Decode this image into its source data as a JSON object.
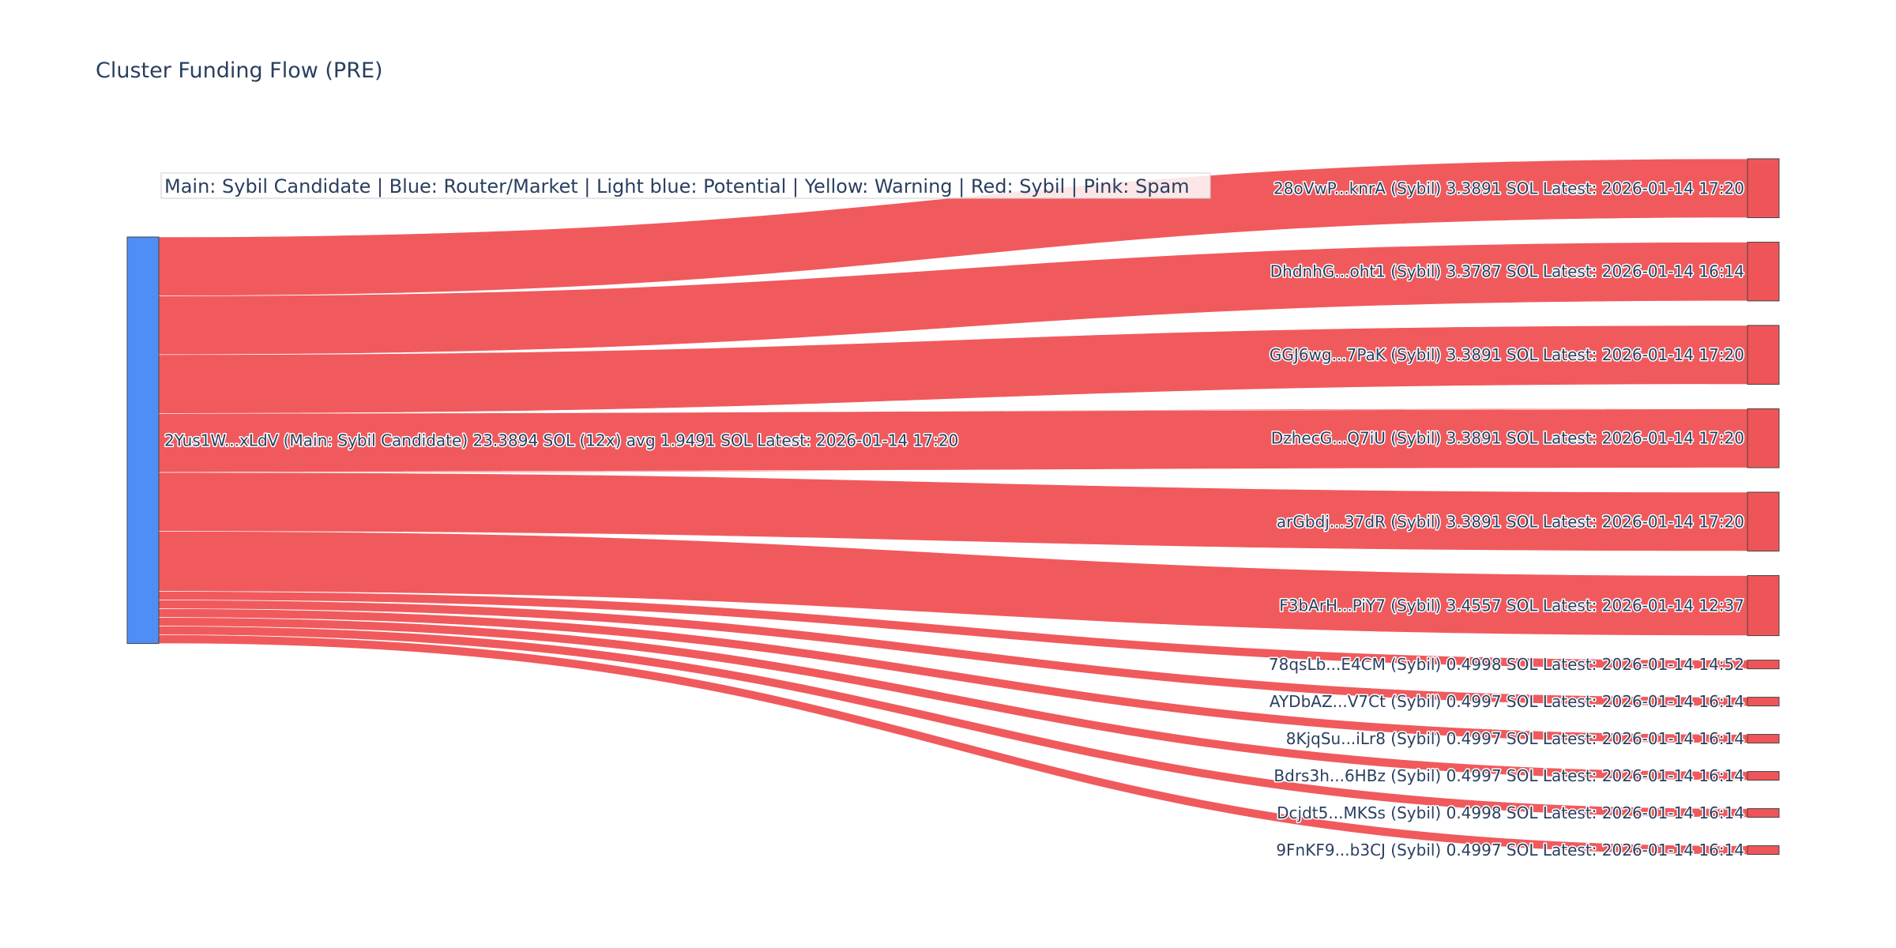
{
  "title": "Cluster Funding Flow (PRE)",
  "annotation": "Main: Sybil Candidate  |  Blue: Router/Market | Light blue: Potential | Yellow: Warning | Red: Sybil | Pink: Spam",
  "chart_data": {
    "type": "sankey",
    "title": "Cluster Funding Flow (PRE)",
    "source": {
      "label": "2Yus1W...xLdV (Main: Sybil Candidate) 23.3894 SOL (12x) avg 1.9491 SOL Latest: 2026-01-14 17:20",
      "value": 23.3894,
      "color": "#4f8ef7"
    },
    "link_color": "#ef5558",
    "target_color": "#ef5558",
    "targets": [
      {
        "label": "28oVwP...knrA (Sybil) 3.3891 SOL Latest: 2026-01-14 17:20",
        "value": 3.3891
      },
      {
        "label": "DhdnhG...oht1 (Sybil) 3.3787 SOL Latest: 2026-01-14 16:14",
        "value": 3.3787
      },
      {
        "label": "GGJ6wg...7PaK (Sybil) 3.3891 SOL Latest: 2026-01-14 17:20",
        "value": 3.3891
      },
      {
        "label": "DzhecG...Q7iU (Sybil) 3.3891 SOL Latest: 2026-01-14 17:20",
        "value": 3.3891
      },
      {
        "label": "arGbdj...37dR (Sybil) 3.3891 SOL Latest: 2026-01-14 17:20",
        "value": 3.3891
      },
      {
        "label": "F3bArH...PiY7 (Sybil) 3.4557 SOL Latest: 2026-01-14 12:37",
        "value": 3.4557
      },
      {
        "label": "78qsLb...E4CM (Sybil) 0.4998 SOL Latest: 2026-01-14 14:52",
        "value": 0.4998
      },
      {
        "label": "AYDbAZ...V7Ct (Sybil) 0.4997 SOL Latest: 2026-01-14 16:14",
        "value": 0.4997
      },
      {
        "label": "8KjqSu...iLr8 (Sybil) 0.4997 SOL Latest: 2026-01-14 16:14",
        "value": 0.4997
      },
      {
        "label": "Bdrs3h...6HBz (Sybil) 0.4997 SOL Latest: 2026-01-14 16:14",
        "value": 0.4997
      },
      {
        "label": "Dcjdt5...MKSs (Sybil) 0.4998 SOL Latest: 2026-01-14 16:14",
        "value": 0.4998
      },
      {
        "label": "9FnKF9...b3CJ (Sybil) 0.4997 SOL Latest: 2026-01-14 16:14",
        "value": 0.4997
      }
    ]
  }
}
